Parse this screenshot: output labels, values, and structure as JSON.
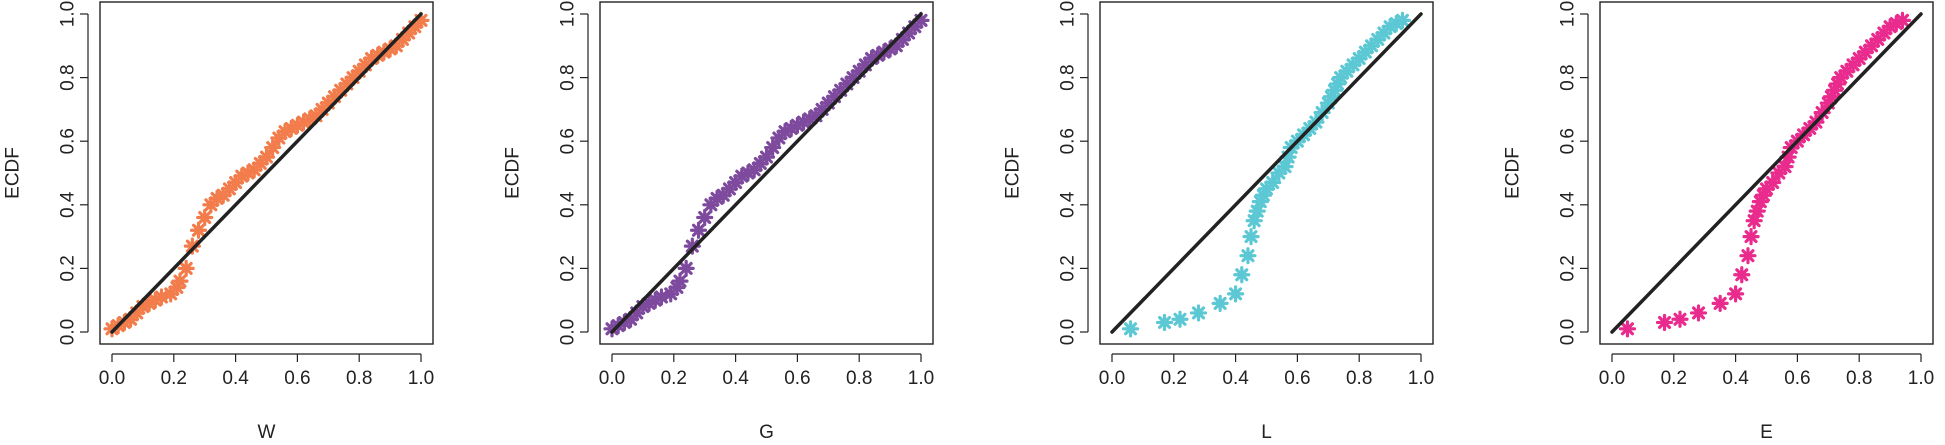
{
  "chart_data": [
    {
      "type": "scatter",
      "title": "",
      "xlabel": "W",
      "ylabel": "ECDF",
      "xlim": [
        0,
        1
      ],
      "ylim": [
        0,
        1
      ],
      "xticks": [
        "0.0",
        "0.2",
        "0.4",
        "0.6",
        "0.8",
        "1.0"
      ],
      "yticks": [
        "0.0",
        "0.2",
        "0.4",
        "0.6",
        "0.8",
        "1.0"
      ],
      "grid": false,
      "legend": "none",
      "reference_line": {
        "x": [
          0,
          1
        ],
        "y": [
          0,
          1
        ],
        "color": "#222222"
      },
      "series": [
        {
          "color": "#f27c4b",
          "marker": "asterisk",
          "x": [
            0.0,
            0.02,
            0.04,
            0.06,
            0.08,
            0.1,
            0.12,
            0.14,
            0.16,
            0.19,
            0.21,
            0.22,
            0.24,
            0.26,
            0.28,
            0.3,
            0.32,
            0.34,
            0.36,
            0.38,
            0.4,
            0.42,
            0.44,
            0.46,
            0.48,
            0.5,
            0.52,
            0.54,
            0.56,
            0.58,
            0.6,
            0.62,
            0.64,
            0.66,
            0.68,
            0.7,
            0.72,
            0.74,
            0.76,
            0.78,
            0.8,
            0.82,
            0.84,
            0.86,
            0.88,
            0.9,
            0.92,
            0.94,
            0.96,
            0.98,
            1.0
          ],
          "y": [
            0.01,
            0.02,
            0.03,
            0.04,
            0.06,
            0.08,
            0.09,
            0.1,
            0.11,
            0.12,
            0.14,
            0.16,
            0.2,
            0.27,
            0.32,
            0.36,
            0.4,
            0.42,
            0.43,
            0.45,
            0.47,
            0.49,
            0.5,
            0.51,
            0.53,
            0.55,
            0.58,
            0.61,
            0.63,
            0.64,
            0.65,
            0.66,
            0.67,
            0.68,
            0.7,
            0.72,
            0.74,
            0.76,
            0.78,
            0.8,
            0.82,
            0.84,
            0.86,
            0.87,
            0.88,
            0.89,
            0.9,
            0.92,
            0.94,
            0.96,
            0.98
          ]
        }
      ]
    },
    {
      "type": "scatter",
      "title": "",
      "xlabel": "G",
      "ylabel": "ECDF",
      "xlim": [
        0,
        1
      ],
      "ylim": [
        0,
        1
      ],
      "xticks": [
        "0.0",
        "0.2",
        "0.4",
        "0.6",
        "0.8",
        "1.0"
      ],
      "yticks": [
        "0.0",
        "0.2",
        "0.4",
        "0.6",
        "0.8",
        "1.0"
      ],
      "grid": false,
      "legend": "none",
      "reference_line": {
        "x": [
          0,
          1
        ],
        "y": [
          0,
          1
        ],
        "color": "#222222"
      },
      "series": [
        {
          "color": "#7e4a9e",
          "marker": "asterisk",
          "x": [
            0.0,
            0.02,
            0.04,
            0.06,
            0.08,
            0.1,
            0.12,
            0.14,
            0.16,
            0.19,
            0.21,
            0.22,
            0.24,
            0.26,
            0.28,
            0.3,
            0.32,
            0.34,
            0.36,
            0.38,
            0.4,
            0.42,
            0.44,
            0.46,
            0.48,
            0.5,
            0.52,
            0.54,
            0.56,
            0.58,
            0.6,
            0.62,
            0.64,
            0.66,
            0.68,
            0.7,
            0.72,
            0.74,
            0.76,
            0.78,
            0.8,
            0.82,
            0.84,
            0.86,
            0.88,
            0.9,
            0.92,
            0.94,
            0.96,
            0.98,
            1.0
          ],
          "y": [
            0.01,
            0.02,
            0.03,
            0.04,
            0.06,
            0.08,
            0.09,
            0.1,
            0.11,
            0.12,
            0.14,
            0.16,
            0.2,
            0.27,
            0.32,
            0.36,
            0.4,
            0.42,
            0.43,
            0.45,
            0.47,
            0.49,
            0.5,
            0.51,
            0.53,
            0.55,
            0.58,
            0.61,
            0.63,
            0.64,
            0.65,
            0.66,
            0.67,
            0.68,
            0.7,
            0.72,
            0.74,
            0.76,
            0.78,
            0.8,
            0.82,
            0.84,
            0.86,
            0.87,
            0.88,
            0.89,
            0.9,
            0.92,
            0.94,
            0.96,
            0.98
          ]
        }
      ]
    },
    {
      "type": "scatter",
      "title": "",
      "xlabel": "L",
      "ylabel": "ECDF",
      "xlim": [
        0,
        1
      ],
      "ylim": [
        0,
        1
      ],
      "xticks": [
        "0.0",
        "0.2",
        "0.4",
        "0.6",
        "0.8",
        "1.0"
      ],
      "yticks": [
        "0.0",
        "0.2",
        "0.4",
        "0.6",
        "0.8",
        "1.0"
      ],
      "grid": false,
      "legend": "none",
      "reference_line": {
        "x": [
          0,
          1
        ],
        "y": [
          0,
          1
        ],
        "color": "#222222"
      },
      "series": [
        {
          "color": "#5bc8d4",
          "marker": "asterisk",
          "x": [
            0.06,
            0.17,
            0.22,
            0.28,
            0.35,
            0.4,
            0.42,
            0.44,
            0.45,
            0.46,
            0.47,
            0.48,
            0.49,
            0.5,
            0.52,
            0.54,
            0.56,
            0.57,
            0.58,
            0.6,
            0.62,
            0.64,
            0.66,
            0.68,
            0.7,
            0.71,
            0.72,
            0.73,
            0.74,
            0.76,
            0.78,
            0.8,
            0.82,
            0.84,
            0.86,
            0.88,
            0.9,
            0.92,
            0.94
          ],
          "y": [
            0.01,
            0.03,
            0.04,
            0.06,
            0.09,
            0.12,
            0.18,
            0.24,
            0.3,
            0.35,
            0.38,
            0.41,
            0.43,
            0.45,
            0.47,
            0.5,
            0.52,
            0.55,
            0.58,
            0.6,
            0.62,
            0.64,
            0.66,
            0.69,
            0.72,
            0.74,
            0.76,
            0.78,
            0.8,
            0.82,
            0.84,
            0.86,
            0.88,
            0.9,
            0.92,
            0.94,
            0.96,
            0.97,
            0.98
          ]
        }
      ]
    },
    {
      "type": "scatter",
      "title": "",
      "xlabel": "E",
      "ylabel": "ECDF",
      "xlim": [
        0,
        1
      ],
      "ylim": [
        0,
        1
      ],
      "xticks": [
        "0.0",
        "0.2",
        "0.4",
        "0.6",
        "0.8",
        "1.0"
      ],
      "yticks": [
        "0.0",
        "0.2",
        "0.4",
        "0.6",
        "0.8",
        "1.0"
      ],
      "grid": false,
      "legend": "none",
      "reference_line": {
        "x": [
          0,
          1
        ],
        "y": [
          0,
          1
        ],
        "color": "#222222"
      },
      "series": [
        {
          "color": "#ea2b8e",
          "marker": "asterisk",
          "x": [
            0.05,
            0.17,
            0.22,
            0.28,
            0.35,
            0.4,
            0.42,
            0.44,
            0.45,
            0.46,
            0.47,
            0.48,
            0.49,
            0.5,
            0.52,
            0.54,
            0.56,
            0.57,
            0.58,
            0.6,
            0.62,
            0.64,
            0.66,
            0.68,
            0.7,
            0.71,
            0.72,
            0.73,
            0.74,
            0.76,
            0.78,
            0.8,
            0.82,
            0.84,
            0.86,
            0.88,
            0.9,
            0.92,
            0.94
          ],
          "y": [
            0.01,
            0.03,
            0.04,
            0.06,
            0.09,
            0.12,
            0.18,
            0.24,
            0.3,
            0.35,
            0.38,
            0.41,
            0.43,
            0.45,
            0.47,
            0.5,
            0.52,
            0.55,
            0.58,
            0.6,
            0.62,
            0.64,
            0.66,
            0.69,
            0.72,
            0.74,
            0.76,
            0.78,
            0.8,
            0.82,
            0.84,
            0.86,
            0.88,
            0.9,
            0.92,
            0.94,
            0.96,
            0.97,
            0.98
          ]
        }
      ]
    }
  ]
}
